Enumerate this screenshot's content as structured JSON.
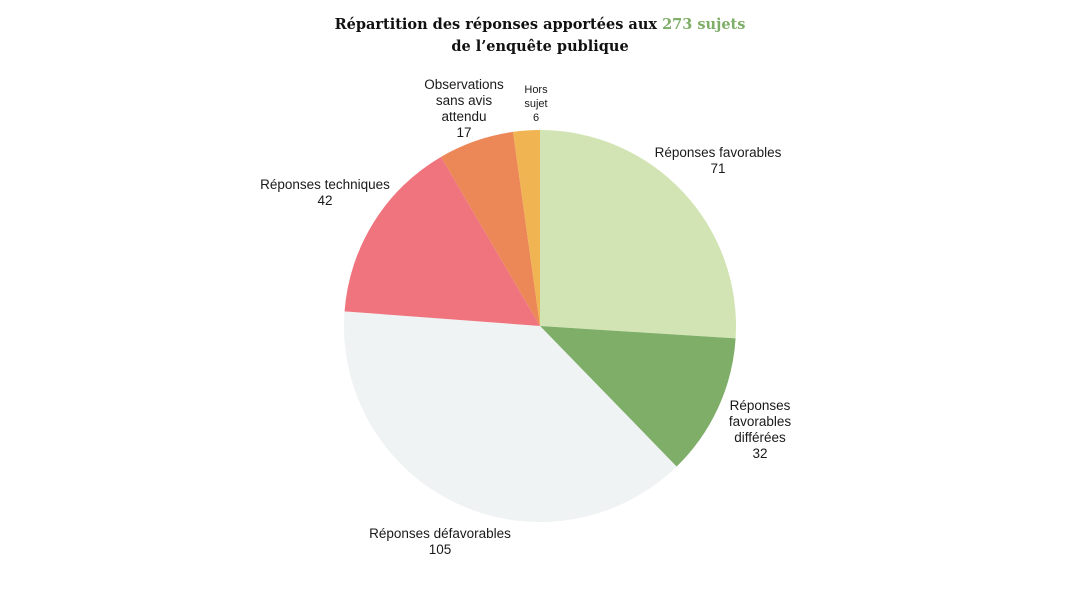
{
  "chart_data": {
    "type": "pie",
    "title_prefix": "Répartition des réponses apportées aux ",
    "title_highlight": "273 sujets",
    "title_line2": "de l’enquête publique",
    "start_angle_deg": 0,
    "direction": "clockwise",
    "slices": [
      {
        "label_lines": [
          "Réponses favorables"
        ],
        "value": 71,
        "color": "#d3e4b4"
      },
      {
        "label_lines": [
          "Réponses",
          "favorables",
          "différées"
        ],
        "value": 32,
        "color": "#7fae69"
      },
      {
        "label_lines": [
          "Réponses défavorables"
        ],
        "value": 105,
        "color": "#eff3f3"
      },
      {
        "label_lines": [
          "Réponses techniques"
        ],
        "value": 42,
        "color": "#ef747e"
      },
      {
        "label_lines": [
          "Observations",
          "sans avis",
          "attendu"
        ],
        "value": 17,
        "color": "#ec8757"
      },
      {
        "label_lines": [
          "Hors",
          "sujet"
        ],
        "value": 6,
        "color": "#f0b452"
      }
    ],
    "highlight_color": "#7fae69"
  }
}
